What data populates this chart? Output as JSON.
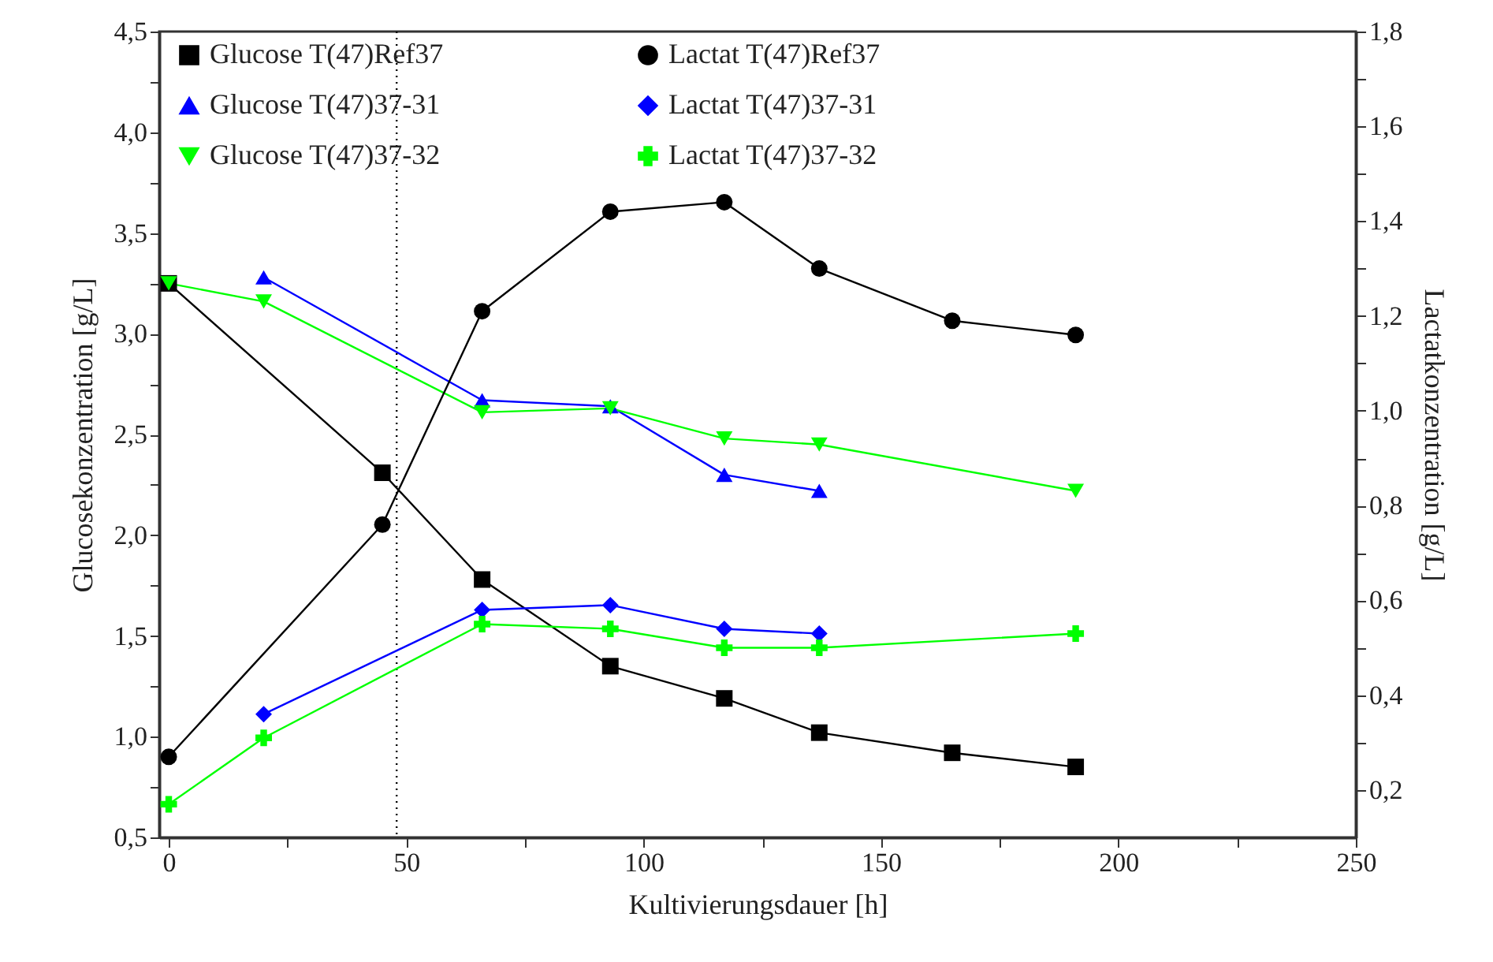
{
  "chart_data": {
    "type": "line",
    "xlabel": "Kultivierungsdauer [h]",
    "ylabel": "Glucosekonzentration [g/L]",
    "y2label": "Lactatkonzentration [g/L]",
    "xlim": [
      -2,
      250
    ],
    "xticks": [
      0,
      {
        "value": 25,
        "label": null
      },
      50,
      {
        "value": 75,
        "label": null
      },
      100,
      {
        "value": 125,
        "label": null
      },
      150,
      {
        "value": 175,
        "label": null
      },
      200,
      {
        "value": 225,
        "label": null
      },
      250
    ],
    "ylim": [
      0.5,
      4.5
    ],
    "yticks": [
      {
        "value": 0.5,
        "label": "0,5"
      },
      {
        "value": 0.75,
        "label": null
      },
      {
        "value": 1,
        "label": "1,0"
      },
      {
        "value": 1.25,
        "label": null
      },
      {
        "value": 1.5,
        "label": "1,5"
      },
      {
        "value": 1.75,
        "label": null
      },
      {
        "value": 2,
        "label": "2,0"
      },
      {
        "value": 2.25,
        "label": null
      },
      {
        "value": 2.5,
        "label": "2,5"
      },
      {
        "value": 2.75,
        "label": null
      },
      {
        "value": 3,
        "label": "3,0"
      },
      {
        "value": 3.25,
        "label": null
      },
      {
        "value": 3.5,
        "label": "3,5"
      },
      {
        "value": 3.75,
        "label": null
      },
      {
        "value": 4,
        "label": "4,0"
      },
      {
        "value": 4.25,
        "label": null
      },
      {
        "value": 4.5,
        "label": "4,5"
      }
    ],
    "y2lim": [
      0.1,
      1.8
    ],
    "y2ticks": [
      {
        "value": 0.2,
        "label": "0,2"
      },
      {
        "value": 0.3,
        "label": null
      },
      {
        "value": 0.4,
        "label": "0,4"
      },
      {
        "value": 0.5,
        "label": null
      },
      {
        "value": 0.6,
        "label": "0,6"
      },
      {
        "value": 0.7,
        "label": null
      },
      {
        "value": 0.8,
        "label": "0,8"
      },
      {
        "value": 0.9,
        "label": null
      },
      {
        "value": 1,
        "label": "1,0"
      },
      {
        "value": 1.1,
        "label": null
      },
      {
        "value": 1.2,
        "label": "1,2"
      },
      {
        "value": 1.3,
        "label": null
      },
      {
        "value": 1.4,
        "label": "1,4"
      },
      {
        "value": 1.5,
        "label": null
      },
      {
        "value": 1.6,
        "label": "1,6"
      },
      {
        "value": 1.7,
        "label": null
      },
      {
        "value": 1.8,
        "label": "1,8"
      }
    ],
    "legend": "top",
    "grid": false,
    "line_style": "solid",
    "ref_lines": [
      {
        "axis": "x",
        "value": 48,
        "line_style": "dotted",
        "color": "#000000"
      }
    ],
    "series": [
      {
        "name": "Glucose T(47)Ref37",
        "color": "#000000",
        "marker": "square",
        "x": [
          0,
          45,
          66,
          93,
          117,
          137,
          165,
          191
        ],
        "values": [
          3.25,
          2.31,
          1.78,
          1.35,
          1.19,
          1.02,
          0.92,
          0.85
        ]
      },
      {
        "name": "Glucose T(47)37-31",
        "color": "#0000ff",
        "marker": "triangle",
        "x": [
          20,
          66,
          93,
          117,
          137
        ],
        "values": [
          3.28,
          2.67,
          2.64,
          2.3,
          2.22
        ]
      },
      {
        "name": "Glucose T(47)37-32",
        "color": "#00ff00",
        "marker": "triangle-down",
        "x": [
          0,
          20,
          66,
          93,
          117,
          137,
          191
        ],
        "values": [
          3.25,
          3.16,
          2.61,
          2.63,
          2.48,
          2.45,
          2.22
        ]
      },
      {
        "name": "Lactat T(47)Ref37",
        "color": "#000000",
        "marker": "circle",
        "axis": "y2",
        "x": [
          0,
          45,
          66,
          93,
          117,
          137,
          165,
          191
        ],
        "values": [
          0.27,
          0.76,
          1.21,
          1.42,
          1.44,
          1.3,
          1.19,
          1.16
        ]
      },
      {
        "name": "Lactat T(47)37-31",
        "color": "#0000ff",
        "marker": "diamond",
        "axis": "y2",
        "x": [
          20,
          66,
          93,
          117,
          137
        ],
        "values": [
          0.36,
          0.58,
          0.59,
          0.54,
          0.53
        ]
      },
      {
        "name": "Lactat T(47)37-32",
        "color": "#00ff00",
        "marker": "cross",
        "axis": "y2",
        "x": [
          0,
          20,
          66,
          93,
          117,
          137,
          191
        ],
        "values": [
          0.17,
          0.31,
          0.55,
          0.54,
          0.5,
          0.5,
          0.53
        ]
      }
    ]
  }
}
